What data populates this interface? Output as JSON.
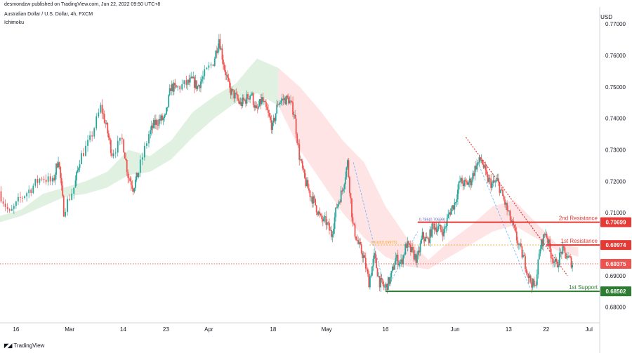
{
  "header": {
    "publisher": "desmondzw published on TradingView.com, Jun 22, 2022 09:50 UTC+8",
    "symbol": "Australian Dollar / U.S. Dollar, 4h, FXCM",
    "indicator": "Ichimoku"
  },
  "currency": "USD",
  "brand": "TradingView",
  "colors": {
    "up": "#26a69a",
    "down": "#ef5350",
    "support": "#2e7d32",
    "resistance": "#e53935",
    "current": "#ef5350",
    "cloud_bull": "#c8e6c9",
    "cloud_bear": "#ffcdd2",
    "fib": "#f5a623",
    "trend": "#e53935",
    "pattern": "#64b5f6"
  },
  "chart_data": {
    "type": "candlestick",
    "title": "Australian Dollar / U.S. Dollar, 4h, FXCM",
    "ylabel": "USD",
    "ylim": [
      0.675,
      0.7745
    ],
    "xlim": [
      0,
      112
    ],
    "y_ticks": [
      "0.77000",
      "0.76000",
      "0.75000",
      "0.74000",
      "0.73000",
      "0.72000",
      "0.71000",
      "0.70000",
      "0.69000",
      "0.68000"
    ],
    "x_ticks": [
      {
        "t": 3,
        "label": "16"
      },
      {
        "t": 13,
        "label": "Mar"
      },
      {
        "t": 23,
        "label": "14"
      },
      {
        "t": 31,
        "label": "23"
      },
      {
        "t": 39,
        "label": "Apr"
      },
      {
        "t": 51,
        "label": "18"
      },
      {
        "t": 61,
        "label": "May"
      },
      {
        "t": 72,
        "label": "16"
      },
      {
        "t": 85,
        "label": "Jun"
      },
      {
        "t": 95,
        "label": "13"
      },
      {
        "t": 102,
        "label": "22"
      },
      {
        "t": 110,
        "label": "Jul"
      }
    ],
    "price_path": [
      [
        0,
        0.7168
      ],
      [
        2,
        0.7095
      ],
      [
        4,
        0.7145
      ],
      [
        6,
        0.7178
      ],
      [
        8,
        0.7215
      ],
      [
        10,
        0.7195
      ],
      [
        11,
        0.7275
      ],
      [
        12,
        0.7105
      ],
      [
        14,
        0.718
      ],
      [
        15,
        0.727
      ],
      [
        17,
        0.733
      ],
      [
        19,
        0.7435
      ],
      [
        20,
        0.737
      ],
      [
        21,
        0.729
      ],
      [
        23,
        0.733
      ],
      [
        24,
        0.722
      ],
      [
        25,
        0.718
      ],
      [
        26,
        0.723
      ],
      [
        28,
        0.735
      ],
      [
        29,
        0.7385
      ],
      [
        30,
        0.7395
      ],
      [
        31,
        0.74
      ],
      [
        32,
        0.75
      ],
      [
        33,
        0.7495
      ],
      [
        35,
        0.751
      ],
      [
        36,
        0.752
      ],
      [
        37,
        0.75
      ],
      [
        38,
        0.753
      ],
      [
        40,
        0.758
      ],
      [
        41,
        0.7655
      ],
      [
        42,
        0.756
      ],
      [
        43,
        0.749
      ],
      [
        44,
        0.747
      ],
      [
        45,
        0.7445
      ],
      [
        46,
        0.746
      ],
      [
        47,
        0.748
      ],
      [
        48,
        0.742
      ],
      [
        49,
        0.746
      ],
      [
        50,
        0.742
      ],
      [
        51,
        0.737
      ],
      [
        52,
        0.745
      ],
      [
        53,
        0.746
      ],
      [
        54,
        0.746
      ],
      [
        55,
        0.742
      ],
      [
        56,
        0.728
      ],
      [
        57,
        0.7205
      ],
      [
        58,
        0.716
      ],
      [
        59,
        0.7125
      ],
      [
        60,
        0.708
      ],
      [
        61,
        0.707
      ],
      [
        62,
        0.703
      ],
      [
        63,
        0.712
      ],
      [
        64,
        0.717
      ],
      [
        65,
        0.726
      ],
      [
        66,
        0.706
      ],
      [
        67,
        0.7
      ],
      [
        68,
        0.696
      ],
      [
        69,
        0.688
      ],
      [
        70,
        0.696
      ],
      [
        71,
        0.688
      ],
      [
        72,
        0.686
      ],
      [
        73,
        0.689
      ],
      [
        74,
        0.6955
      ],
      [
        75,
        0.694
      ],
      [
        76,
        0.7
      ],
      [
        77,
        0.6975
      ],
      [
        78,
        0.695
      ],
      [
        79,
        0.7025
      ],
      [
        80,
        0.701
      ],
      [
        81,
        0.706
      ],
      [
        82,
        0.705
      ],
      [
        83,
        0.704
      ],
      [
        84,
        0.71
      ],
      [
        85,
        0.713
      ],
      [
        86,
        0.72
      ],
      [
        87,
        0.719
      ],
      [
        88,
        0.72
      ],
      [
        89,
        0.725
      ],
      [
        90,
        0.727
      ],
      [
        91,
        0.721
      ],
      [
        92,
        0.719
      ],
      [
        93,
        0.72
      ],
      [
        94,
        0.715
      ],
      [
        95,
        0.71
      ],
      [
        96,
        0.705
      ],
      [
        97,
        0.6995
      ],
      [
        98,
        0.695
      ],
      [
        99,
        0.689
      ],
      [
        100,
        0.686
      ],
      [
        101,
        0.699
      ],
      [
        102,
        0.704
      ],
      [
        103,
        0.697
      ],
      [
        104,
        0.693
      ],
      [
        105,
        0.698
      ],
      [
        106,
        0.696
      ],
      [
        107,
        0.6938
      ]
    ],
    "cloud_upper": [
      [
        0,
        0.709
      ],
      [
        4,
        0.711
      ],
      [
        8,
        0.716
      ],
      [
        12,
        0.718
      ],
      [
        16,
        0.72
      ],
      [
        20,
        0.723
      ],
      [
        24,
        0.73
      ],
      [
        28,
        0.728
      ],
      [
        32,
        0.733
      ],
      [
        36,
        0.742
      ],
      [
        40,
        0.747
      ],
      [
        44,
        0.751
      ],
      [
        48,
        0.759
      ],
      [
        52,
        0.756
      ],
      [
        56,
        0.75
      ],
      [
        60,
        0.742
      ],
      [
        64,
        0.733
      ],
      [
        68,
        0.726
      ],
      [
        72,
        0.712
      ],
      [
        76,
        0.702
      ],
      [
        80,
        0.695
      ],
      [
        84,
        0.701
      ],
      [
        88,
        0.706
      ],
      [
        92,
        0.712
      ],
      [
        96,
        0.714
      ],
      [
        100,
        0.707
      ],
      [
        104,
        0.7
      ],
      [
        108,
        0.699
      ]
    ],
    "cloud_lower": [
      [
        0,
        0.707
      ],
      [
        4,
        0.709
      ],
      [
        8,
        0.712
      ],
      [
        12,
        0.715
      ],
      [
        16,
        0.716
      ],
      [
        20,
        0.718
      ],
      [
        24,
        0.722
      ],
      [
        28,
        0.723
      ],
      [
        32,
        0.727
      ],
      [
        36,
        0.734
      ],
      [
        40,
        0.74
      ],
      [
        44,
        0.745
      ],
      [
        48,
        0.748
      ],
      [
        52,
        0.744
      ],
      [
        56,
        0.73
      ],
      [
        60,
        0.72
      ],
      [
        64,
        0.71
      ],
      [
        68,
        0.702
      ],
      [
        72,
        0.696
      ],
      [
        76,
        0.693
      ],
      [
        80,
        0.692
      ],
      [
        84,
        0.696
      ],
      [
        88,
        0.7
      ],
      [
        92,
        0.704
      ],
      [
        96,
        0.706
      ],
      [
        100,
        0.702
      ],
      [
        104,
        0.698
      ],
      [
        108,
        0.696
      ]
    ],
    "levels": [
      {
        "name": "2nd Resistance",
        "value": 0.70699,
        "label": "0.70699",
        "color": "#e53935",
        "x_from": 78
      },
      {
        "name": "1st Resistance",
        "value": 0.69974,
        "label": "0.69974",
        "color": "#e53935",
        "x_from": 102
      },
      {
        "name": "1st Support",
        "value": 0.68502,
        "label": "0.68502",
        "color": "#2e7d32",
        "x_from": 72
      }
    ],
    "current_price": {
      "value": 0.69375,
      "label": "0.69375"
    },
    "fib_levels": [
      {
        "label": "0.618(0.69975)",
        "value": 0.69975,
        "x_from": 69,
        "x_to": 101
      },
      {
        "label": "0.786(0.70699)",
        "value": 0.70699,
        "x_from": 78,
        "x_to": 101
      }
    ],
    "pattern_lines": [
      [
        [
          66,
          0.726
        ],
        [
          72,
          0.685
        ]
      ],
      [
        [
          72,
          0.685
        ],
        [
          78,
          0.704
        ]
      ],
      [
        [
          89,
          0.727
        ],
        [
          99,
          0.686
        ]
      ]
    ],
    "trendline": [
      [
        87,
        0.734
      ],
      [
        106,
        0.69
      ]
    ]
  }
}
